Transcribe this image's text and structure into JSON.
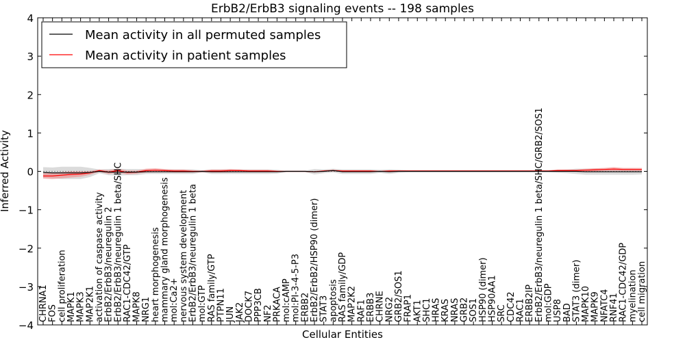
{
  "chart_data": {
    "type": "line",
    "title": "ErbB2/ErbB3 signaling events -- 198 samples",
    "xlabel": "Cellular Entities",
    "ylabel": "Inferred Activity",
    "ylim": [
      -4,
      4
    ],
    "yticks": [
      -4,
      -3,
      -2,
      -1,
      0,
      1,
      2,
      3,
      4
    ],
    "ytick_labels": [
      "−4",
      "−3",
      "−2",
      "−1",
      "0",
      "1",
      "2",
      "3",
      "4"
    ],
    "legend_position": "top-left",
    "categories": [
      "CHRNA1",
      "FOS",
      "cell proliferation",
      "MAPK1",
      "MAPK3",
      "MAP2K1",
      "activation of caspase activity",
      "ErbB2/ErbB3/neuregulin 2",
      "ErbB2/ErbB3/neuregulin 1 beta/SHC",
      "RAC1-CDC42/GTP",
      "MAPK8",
      "NRG1",
      "heart morphogenesis",
      "mammary gland morphogenesis",
      "mol:Ca2+",
      "nervous system development",
      "ErbB2/ErbB3/neuregulin 1 beta",
      "mol:GTP",
      "RAS family/GTP",
      "PTPN11",
      "JUN",
      "JAK2",
      "DOCK7",
      "PPP3CB",
      "NF2",
      "PRKACA",
      "mol:cAMP",
      "mol:PI-3-4-5-P3",
      "ERBB2",
      "ErbB2/ErbB2/HSP90 (dimer)",
      "STAT3",
      "apoptosis",
      "RAS family/GDP",
      "MAP2K2",
      "RAF1",
      "ERBB3",
      "CHRNE",
      "NRG2",
      "GRB2/SOS1",
      "FRAP1",
      "AKT1",
      "SHC1",
      "HRAS",
      "KRAS",
      "NRAS",
      "GRB2",
      "SOS1",
      "HSP90 (dimer)",
      "HSP90AA1",
      "SRC",
      "CDC42",
      "RAC1",
      "ERBB2IP",
      "ErbB2/ErbB3/neuregulin 1 beta/SHC/GRB2/SOS1",
      "mol:GDP",
      "USP8",
      "BAD",
      "STAT3 (dimer)",
      "MAPK10",
      "MAPK9",
      "NFATC4",
      "RNF41",
      "RAC1-CDC42/GDP",
      "myelination",
      "cell migration"
    ],
    "series": [
      {
        "name": "Mean activity in all permuted samples",
        "color": "#000000",
        "values": [
          -0.03,
          -0.04,
          -0.04,
          -0.04,
          -0.04,
          -0.03,
          0,
          -0.02,
          -0.02,
          -0.02,
          -0.02,
          -0.01,
          -0.01,
          -0.01,
          -0.01,
          -0.01,
          -0.01,
          0,
          -0.01,
          -0.01,
          -0.01,
          -0.01,
          -0.01,
          -0.01,
          -0.01,
          -0.01,
          0,
          0,
          0,
          -0.01,
          0,
          0.02,
          -0.01,
          -0.01,
          -0.01,
          -0.01,
          0,
          -0.01,
          0,
          0,
          0,
          0,
          0,
          0,
          0,
          0,
          0,
          0,
          0,
          0,
          0,
          0,
          0,
          0,
          0,
          0,
          0,
          0,
          -0.01,
          -0.01,
          -0.01,
          -0.01,
          -0.01,
          -0.01,
          -0.01
        ],
        "band": [
          0.14,
          0.14,
          0.16,
          0.16,
          0.16,
          0.12,
          0.05,
          0.08,
          0.09,
          0.08,
          0.08,
          0.06,
          0.06,
          0.06,
          0.06,
          0.06,
          0.06,
          0.03,
          0.06,
          0.06,
          0.06,
          0.06,
          0.06,
          0.06,
          0.06,
          0.05,
          0.02,
          0.02,
          0.02,
          0.07,
          0.05,
          0.05,
          0.06,
          0.06,
          0.06,
          0.06,
          0.04,
          0.06,
          0.04,
          0.03,
          0.03,
          0.03,
          0.03,
          0.03,
          0.03,
          0.03,
          0.03,
          0.03,
          0.03,
          0.03,
          0.03,
          0.03,
          0.03,
          0.03,
          0.03,
          0.04,
          0.05,
          0.07,
          0.08,
          0.08,
          0.08,
          0.08,
          0.08,
          0.08,
          0.07
        ]
      },
      {
        "name": "Mean activity in patient samples",
        "color": "#ff0000",
        "band_color": "#f08080",
        "values": [
          -0.12,
          -0.12,
          -0.1,
          -0.08,
          -0.07,
          -0.04,
          0.02,
          -0.02,
          0.02,
          -0.03,
          -0.02,
          0.02,
          0.03,
          0.02,
          0.01,
          0.01,
          0,
          0,
          0.01,
          0.01,
          0.02,
          0.02,
          0.01,
          0.01,
          0.01,
          0,
          0,
          0,
          0,
          -0.01,
          0.01,
          0.02,
          0.01,
          0.01,
          0.01,
          0.01,
          0,
          0.01,
          0.01,
          0.01,
          0.01,
          0.01,
          0.01,
          0.01,
          0.01,
          0.01,
          0.01,
          0.01,
          0.01,
          0.01,
          0.01,
          0.01,
          0.01,
          0.01,
          0.01,
          0.02,
          0.02,
          0.02,
          0.03,
          0.04,
          0.05,
          0.06,
          0.05,
          0.05,
          0.05
        ],
        "band": [
          0.07,
          0.08,
          0.08,
          0.08,
          0.07,
          0.05,
          0.03,
          0.05,
          0.05,
          0.05,
          0.04,
          0.05,
          0.05,
          0.04,
          0.04,
          0.04,
          0.03,
          0.02,
          0.04,
          0.04,
          0.04,
          0.03,
          0.03,
          0.03,
          0.03,
          0.02,
          0.01,
          0.01,
          0.01,
          0.02,
          0.02,
          0.02,
          0.02,
          0.02,
          0.02,
          0.02,
          0.01,
          0.02,
          0.02,
          0.02,
          0.02,
          0.02,
          0.02,
          0.02,
          0.02,
          0.02,
          0.02,
          0.02,
          0.02,
          0.02,
          0.02,
          0.02,
          0.02,
          0.02,
          0.02,
          0.03,
          0.03,
          0.03,
          0.04,
          0.04,
          0.04,
          0.05,
          0.04,
          0.04,
          0.04
        ]
      }
    ]
  }
}
